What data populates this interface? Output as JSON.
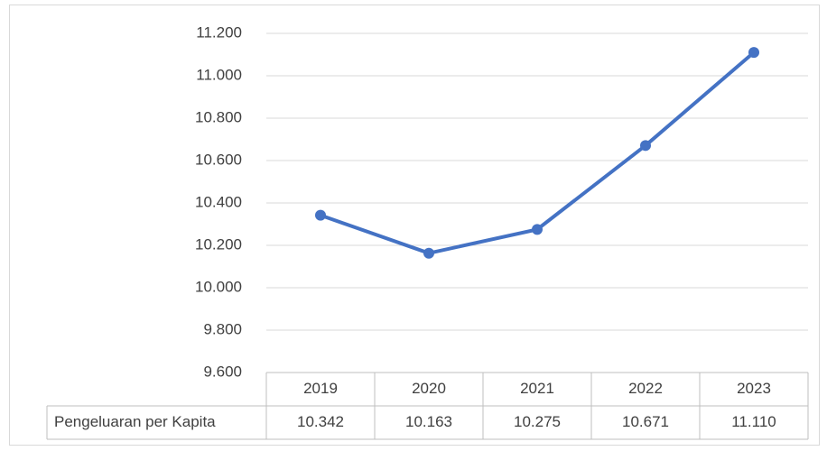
{
  "chart_data": {
    "type": "line",
    "categories": [
      "2019",
      "2020",
      "2021",
      "2022",
      "2023"
    ],
    "series": [
      {
        "name": "Pengeluaran per Kapita",
        "color": "#4472c4",
        "values": [
          10342,
          10163,
          10275,
          10671,
          11110
        ],
        "value_labels": [
          "10.342",
          "10.163",
          "10.275",
          "10.671",
          "11.110"
        ]
      }
    ],
    "ylim": [
      9600,
      11200
    ],
    "yticks": [
      {
        "value": 9600,
        "label": "9.600"
      },
      {
        "value": 9800,
        "label": "9.800"
      },
      {
        "value": 10000,
        "label": "10.000"
      },
      {
        "value": 10200,
        "label": "10.200"
      },
      {
        "value": 10400,
        "label": "10.400"
      },
      {
        "value": 10600,
        "label": "10.600"
      },
      {
        "value": 10800,
        "label": "10.800"
      },
      {
        "value": 11000,
        "label": "11.000"
      },
      {
        "value": 11200,
        "label": "11.200"
      }
    ],
    "grid": true,
    "data_table": true
  }
}
